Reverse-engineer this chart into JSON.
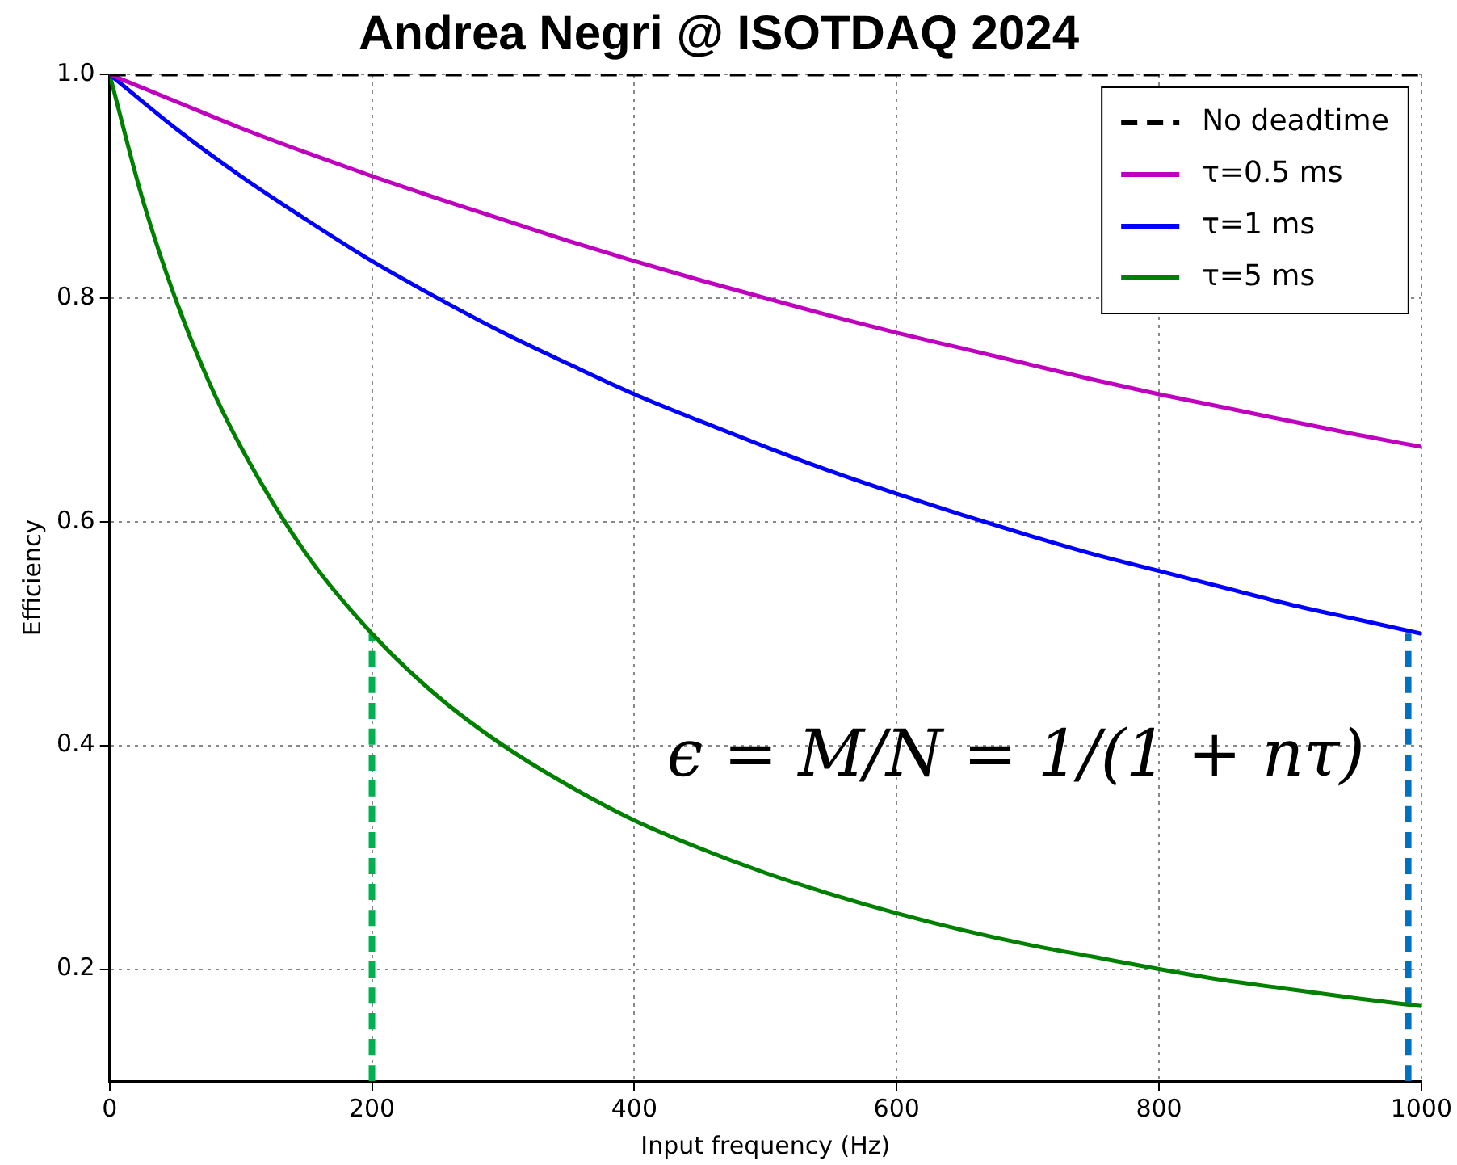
{
  "chart_data": {
    "type": "line",
    "title": "Andrea Negri @ ISOTDAQ 2024",
    "xlabel": "Input frequency (Hz)",
    "ylabel": "Efficiency",
    "xlim": [
      0,
      1000
    ],
    "xticks": [
      0,
      200,
      400,
      600,
      800,
      1000
    ],
    "ylim": [
      0.1,
      1.0
    ],
    "yticks": [
      0.2,
      0.4,
      0.6,
      0.8,
      {
        "value": 1.0,
        "label": "1.0"
      }
    ],
    "grid": true,
    "legend": "top right",
    "marker": "none",
    "annotations": [
      "ϵ = M/N = 1/(1 + nτ)"
    ],
    "series": [
      {
        "name": "No deadtime",
        "color": "#000000",
        "line_style": "dashed",
        "x": [
          0,
          1000
        ],
        "values": [
          1.0,
          1.0
        ]
      },
      {
        "name": "τ=0.5 ms",
        "color": "#bf00bf",
        "x": [
          0,
          50,
          100,
          150,
          200,
          250,
          300,
          350,
          400,
          450,
          500,
          550,
          600,
          650,
          700,
          750,
          800,
          850,
          900,
          950,
          1000
        ],
        "values": [
          1.0,
          0.976,
          0.952,
          0.93,
          0.909,
          0.889,
          0.87,
          0.851,
          0.833,
          0.816,
          0.8,
          0.784,
          0.769,
          0.755,
          0.741,
          0.727,
          0.714,
          0.702,
          0.69,
          0.678,
          0.667
        ]
      },
      {
        "name": "τ=1 ms",
        "color": "#0000ff",
        "x": [
          0,
          50,
          100,
          150,
          200,
          250,
          300,
          350,
          400,
          450,
          500,
          550,
          600,
          650,
          700,
          750,
          800,
          850,
          900,
          950,
          1000
        ],
        "values": [
          1.0,
          0.952,
          0.909,
          0.87,
          0.833,
          0.8,
          0.769,
          0.741,
          0.714,
          0.69,
          0.667,
          0.645,
          0.625,
          0.606,
          0.588,
          0.571,
          0.556,
          0.541,
          0.526,
          0.513,
          0.5
        ]
      },
      {
        "name": "τ=5 ms",
        "color": "#008000",
        "x": [
          0,
          25,
          50,
          75,
          100,
          150,
          200,
          250,
          300,
          350,
          400,
          450,
          500,
          550,
          600,
          650,
          700,
          750,
          800,
          850,
          900,
          950,
          1000
        ],
        "values": [
          1.0,
          0.889,
          0.8,
          0.727,
          0.667,
          0.571,
          0.5,
          0.444,
          0.4,
          0.364,
          0.333,
          0.308,
          0.286,
          0.267,
          0.25,
          0.235,
          0.222,
          0.211,
          0.2,
          0.19,
          0.182,
          0.174,
          0.167
        ]
      },
      {
        "color": "#00b050",
        "line_style": "dashed",
        "x": [
          200,
          200
        ],
        "values": [
          0.1,
          0.5
        ]
      },
      {
        "color": "#0070c0",
        "line_style": "dashed",
        "x": [
          990,
          990
        ],
        "values": [
          0.1,
          0.5
        ]
      }
    ]
  }
}
